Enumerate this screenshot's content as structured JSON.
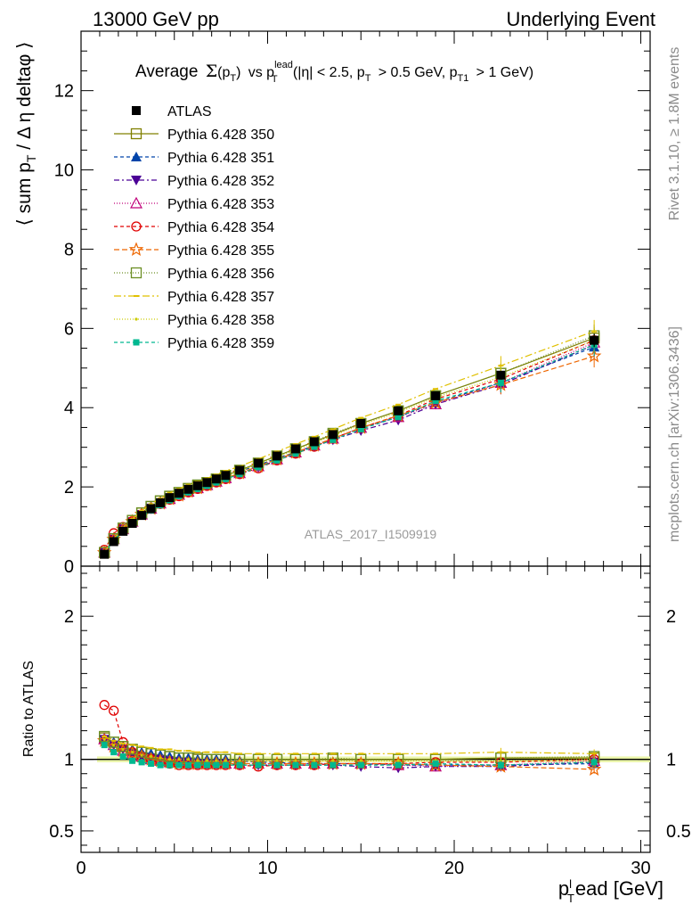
{
  "header": {
    "left": "13000 GeV pp",
    "right": "Underlying Event"
  },
  "side_labels": {
    "rivet": "Rivet 3.1.10, ≥ 1.8M events",
    "mcplots": "mcplots.cern.ch [arXiv:1306.3436]"
  },
  "analysis_id": "ATLAS_2017_I1509919",
  "chart_data": [
    {
      "type": "line",
      "panel": "main",
      "title": "Average Σ(p_T) vs p_T^lead (|η| < 2.5, p_T > 0.5 GeV, p_T1 > 1 GeV)",
      "title_parts": {
        "average": "Average",
        "sigma": "Σ",
        "sigma_paren": "(p",
        "sigma_sub": "T",
        "sigma_close": ")",
        "vs": "vs p",
        "lead_sup": "lead",
        "lead_sub": "T",
        "cut1": "(|η| < 2.5, p",
        "cut1_sub": "T",
        "cut2": "> 0.5 GeV, p",
        "cut2_sub": "T1",
        "cut3": "> 1 GeV)"
      },
      "ylabel": "⟨ sum p_T / Δη deltaφ ⟩",
      "ylabel_parts": {
        "a": "⟨ sum p",
        "sub": "T",
        "b": " / Δ η deltaφ ⟩"
      },
      "xlim": [
        0,
        30.5
      ],
      "ylim": [
        0,
        13.5
      ],
      "yticks": [
        "0",
        "2",
        "4",
        "6",
        "8",
        "10",
        "12"
      ],
      "x": [
        1.25,
        1.75,
        2.25,
        2.75,
        3.25,
        3.75,
        4.25,
        4.75,
        5.25,
        5.75,
        6.25,
        6.75,
        7.25,
        7.75,
        8.5,
        9.5,
        10.5,
        11.5,
        12.5,
        13.5,
        15,
        17,
        19,
        22.5,
        27.5
      ],
      "data": {
        "name": "ATLAS",
        "y": [
          0.3,
          0.62,
          0.88,
          1.08,
          1.28,
          1.45,
          1.6,
          1.73,
          1.84,
          1.94,
          2.03,
          2.11,
          2.2,
          2.29,
          2.42,
          2.6,
          2.78,
          2.96,
          3.14,
          3.32,
          3.6,
          3.92,
          4.3,
          4.82,
          5.7
        ]
      },
      "series": [
        {
          "name": "Pythia 6.428 350",
          "color": "#808000",
          "dash": "",
          "marker": "open-square",
          "ratio": [
            1.15,
            1.12,
            1.09,
            1.07,
            1.05,
            1.04,
            1.03,
            1.02,
            1.01,
            1.01,
            1.0,
            1.0,
            1.0,
            1.0,
            1.0,
            1.0,
            1.0,
            1.0,
            1.0,
            1.0,
            1.0,
            1.0,
            1.0,
            1.01,
            1.01
          ]
        },
        {
          "name": "Pythia 6.428 351",
          "color": "#0044aa",
          "dash": "4,3",
          "marker": "filled-triangle-up",
          "ratio": [
            1.15,
            1.12,
            1.09,
            1.07,
            1.05,
            1.04,
            1.03,
            1.02,
            1.01,
            1.01,
            1.0,
            1.0,
            1.0,
            1.0,
            0.99,
            0.98,
            0.98,
            0.97,
            0.97,
            0.97,
            0.97,
            0.96,
            0.96,
            0.96,
            0.97
          ]
        },
        {
          "name": "Pythia 6.428 352",
          "color": "#4b0096",
          "dash": "6,3,2,3",
          "marker": "filled-triangle-down",
          "ratio": [
            1.14,
            1.1,
            1.07,
            1.04,
            1.02,
            1.01,
            1.0,
            0.99,
            0.98,
            0.98,
            0.97,
            0.97,
            0.97,
            0.97,
            0.96,
            0.96,
            0.96,
            0.96,
            0.96,
            0.96,
            0.95,
            0.94,
            0.95,
            0.95,
            0.98
          ]
        },
        {
          "name": "Pythia 6.428 353",
          "color": "#c0007a",
          "dash": "1,2",
          "marker": "open-triangle-up",
          "ratio": [
            1.14,
            1.1,
            1.06,
            1.04,
            1.02,
            1.0,
            0.99,
            0.98,
            0.98,
            0.97,
            0.97,
            0.97,
            0.97,
            0.97,
            0.97,
            0.97,
            0.97,
            0.97,
            0.97,
            0.97,
            0.97,
            0.96,
            0.95,
            0.96,
            0.99
          ]
        },
        {
          "name": "Pythia 6.428 354",
          "color": "#e00000",
          "dash": "4,3",
          "marker": "open-circle",
          "ratio": [
            1.38,
            1.34,
            1.12,
            1.05,
            1.02,
            1.0,
            0.98,
            0.97,
            0.96,
            0.96,
            0.96,
            0.96,
            0.96,
            0.96,
            0.96,
            0.95,
            0.96,
            0.96,
            0.96,
            0.97,
            0.97,
            0.97,
            0.98,
            0.98,
            1.0
          ]
        },
        {
          "name": "Pythia 6.428 355",
          "color": "#ee6600",
          "dash": "6,3",
          "marker": "open-star",
          "ratio": [
            1.13,
            1.09,
            1.06,
            1.04,
            1.02,
            1.0,
            0.99,
            0.98,
            0.97,
            0.97,
            0.97,
            0.97,
            0.97,
            0.97,
            0.97,
            0.97,
            0.97,
            0.97,
            0.97,
            0.97,
            0.97,
            0.97,
            0.96,
            0.95,
            0.93
          ]
        },
        {
          "name": "Pythia 6.428 356",
          "color": "#6b8e23",
          "dash": "1,2",
          "marker": "open-square",
          "ratio": [
            1.16,
            1.12,
            1.09,
            1.07,
            1.05,
            1.04,
            1.03,
            1.02,
            1.01,
            1.01,
            1.01,
            1.0,
            1.0,
            1.0,
            1.0,
            1.0,
            1.0,
            1.0,
            1.0,
            1.01,
            1.0,
            1.0,
            1.0,
            1.01,
            1.02
          ]
        },
        {
          "name": "Pythia 6.428 357",
          "color": "#e0c000",
          "dash": "8,3,2,3",
          "marker": "small-dash",
          "ratio": [
            1.16,
            1.13,
            1.11,
            1.1,
            1.09,
            1.08,
            1.07,
            1.07,
            1.06,
            1.06,
            1.05,
            1.05,
            1.05,
            1.05,
            1.04,
            1.04,
            1.04,
            1.04,
            1.04,
            1.04,
            1.04,
            1.04,
            1.04,
            1.05,
            1.04
          ]
        },
        {
          "name": "Pythia 6.428 358",
          "color": "#cccc00",
          "dash": "1,2",
          "marker": "small-dot",
          "ratio": [
            1.14,
            1.1,
            1.07,
            1.05,
            1.03,
            1.02,
            1.01,
            1.0,
            1.0,
            1.0,
            0.99,
            0.99,
            0.99,
            0.99,
            0.99,
            0.99,
            0.99,
            0.99,
            0.99,
            0.99,
            0.99,
            0.99,
            0.99,
            0.99,
            1.0
          ]
        },
        {
          "name": "Pythia 6.428 359",
          "color": "#00b890",
          "dash": "4,3",
          "marker": "filled-small-square",
          "ratio": [
            1.1,
            1.05,
            1.02,
            0.99,
            0.98,
            0.97,
            0.96,
            0.96,
            0.96,
            0.96,
            0.96,
            0.96,
            0.96,
            0.96,
            0.96,
            0.96,
            0.96,
            0.96,
            0.96,
            0.96,
            0.96,
            0.96,
            0.97,
            0.96,
            0.98
          ]
        }
      ]
    },
    {
      "type": "line",
      "panel": "ratio",
      "ylabel": "Ratio to ATLAS",
      "xlabel": "p_T^l ead [GeV]",
      "xlabel_parts": {
        "p": "p",
        "sub": "T",
        "sup": "l",
        "rest": "ead [GeV]"
      },
      "xlim": [
        0,
        30.5
      ],
      "ylim": [
        0.35,
        2.35
      ],
      "yticks": [
        "0.5",
        "1",
        "2"
      ],
      "xticks": [
        "0",
        "10",
        "20",
        "30"
      ],
      "band": [
        0.98,
        1.02
      ]
    }
  ]
}
